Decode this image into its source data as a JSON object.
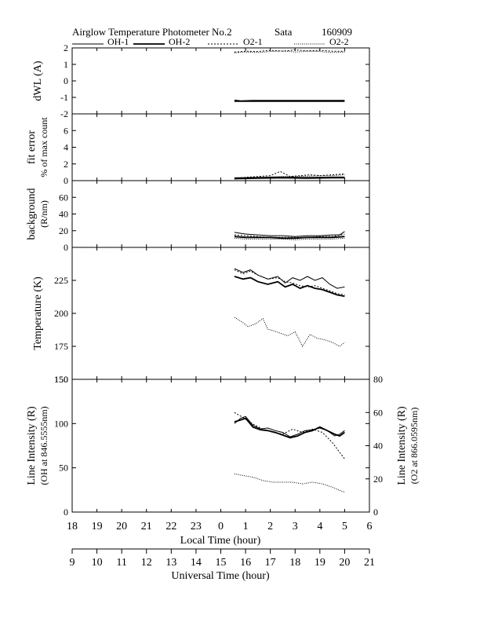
{
  "header": {
    "title": "Airglow Temperature Photometer No.2",
    "station": "Sata",
    "date": "160909"
  },
  "legend": [
    {
      "name": "OH-1",
      "dash": "none",
      "width": 1
    },
    {
      "name": "OH-2",
      "dash": "none",
      "width": 1.8
    },
    {
      "name": "O2-1",
      "dash": "2,2",
      "width": 1
    },
    {
      "name": "O2-2",
      "dash": "1,1.5",
      "width": 1
    }
  ],
  "x_axes": {
    "local": {
      "label": "Local Time (hour)",
      "ticks": [
        "18",
        "19",
        "20",
        "21",
        "22",
        "23",
        "0",
        "1",
        "2",
        "3",
        "4",
        "5",
        "6"
      ]
    },
    "universal": {
      "label": "Universal Time (hour)",
      "ticks": [
        "9",
        "10",
        "11",
        "12",
        "13",
        "14",
        "15",
        "16",
        "17",
        "18",
        "19",
        "20",
        "21"
      ]
    }
  },
  "chart_data": [
    {
      "type": "line",
      "panel": "dwl",
      "ylabel": [
        "dWL (A)"
      ],
      "ylim": [
        -2,
        2
      ],
      "yticks": [
        "2",
        "1",
        "0",
        "-1",
        "-2"
      ],
      "x_unit": "hours since 18 LT",
      "series": [
        {
          "name": "OH-1",
          "x": [
            6.55,
            7.3,
            8,
            9,
            10,
            11
          ],
          "y": [
            -1.25,
            -1.25,
            -1.25,
            -1.25,
            -1.25,
            -1.25
          ]
        },
        {
          "name": "OH-2",
          "x": [
            6.55,
            6.8,
            7.3,
            8,
            9,
            10,
            11
          ],
          "y": [
            -1.18,
            -1.22,
            -1.2,
            -1.2,
            -1.2,
            -1.2,
            -1.2
          ]
        },
        {
          "name": "O2-1",
          "x": [
            6.55,
            7.0,
            7.5,
            8.0,
            8.5,
            9.0,
            9.5,
            10.0,
            10.5,
            11.0
          ],
          "y": [
            1.75,
            1.8,
            1.78,
            1.85,
            1.8,
            1.88,
            1.82,
            1.85,
            1.8,
            1.8
          ]
        },
        {
          "name": "O2-2",
          "x": [
            6.55,
            7.0,
            7.5,
            8.0,
            8.5,
            9.0,
            9.5,
            10.0,
            10.5,
            11.0
          ],
          "y": [
            1.7,
            1.75,
            1.72,
            1.78,
            1.82,
            1.75,
            1.8,
            1.78,
            1.72,
            1.75
          ]
        }
      ]
    },
    {
      "type": "line",
      "panel": "fit-error",
      "ylabel": [
        "fit error",
        "% of max count"
      ],
      "ylim": [
        0,
        8
      ],
      "yticks": [
        "6",
        "4",
        "2",
        "0"
      ],
      "x_unit": "hours since 18 LT",
      "series": [
        {
          "name": "OH-1",
          "x": [
            6.55,
            7.5,
            8.5,
            9.5,
            10.5,
            11
          ],
          "y": [
            0.2,
            0.25,
            0.3,
            0.25,
            0.3,
            0.3
          ]
        },
        {
          "name": "OH-2",
          "x": [
            6.55,
            7.5,
            8.5,
            9.5,
            10.5,
            11
          ],
          "y": [
            0.3,
            0.35,
            0.4,
            0.35,
            0.4,
            0.4
          ]
        },
        {
          "name": "O2-1",
          "x": [
            6.55,
            7.0,
            7.5,
            8.0,
            8.4,
            8.8,
            9.2,
            9.6,
            10.0,
            10.5,
            11.0
          ],
          "y": [
            0.3,
            0.4,
            0.5,
            0.6,
            1.1,
            0.5,
            0.6,
            0.7,
            0.6,
            0.7,
            0.8
          ]
        },
        {
          "name": "O2-2",
          "x": [
            6.55,
            7.0,
            7.5,
            8.0,
            8.5,
            9.0,
            9.5,
            10.0,
            10.5,
            11.0
          ],
          "y": [
            0.2,
            0.3,
            0.4,
            0.45,
            0.5,
            0.5,
            0.55,
            0.6,
            0.6,
            0.7
          ]
        }
      ]
    },
    {
      "type": "line",
      "panel": "background",
      "ylabel": [
        "background",
        "(R/nm)"
      ],
      "ylim": [
        0,
        80
      ],
      "yticks": [
        "60",
        "40",
        "20",
        "0"
      ],
      "x_unit": "hours since 18 LT",
      "series": [
        {
          "name": "OH-1",
          "x": [
            6.55,
            7.0,
            7.5,
            8.0,
            8.5,
            9.0,
            9.5,
            10.0,
            10.5,
            10.8,
            11.0
          ],
          "y": [
            18,
            16,
            15,
            14,
            14,
            13,
            14,
            14,
            15,
            15,
            19
          ]
        },
        {
          "name": "OH-2",
          "x": [
            6.55,
            7.0,
            7.5,
            8.0,
            8.5,
            9.0,
            9.5,
            10.0,
            10.5,
            11.0
          ],
          "y": [
            13,
            12,
            12,
            12,
            11,
            11,
            12,
            12,
            12,
            13
          ]
        },
        {
          "name": "O2-1",
          "x": [
            6.55,
            7.0,
            7.5,
            8.0,
            8.5,
            9.0,
            9.5,
            10.0,
            10.5,
            11.0
          ],
          "y": [
            15,
            14,
            13,
            12,
            12,
            12,
            12,
            13,
            13,
            16
          ]
        },
        {
          "name": "O2-2",
          "x": [
            6.55,
            7.0,
            7.5,
            8.0,
            8.5,
            9.0,
            9.5,
            10.0,
            10.5,
            11.0
          ],
          "y": [
            11,
            10,
            10,
            10,
            10,
            9,
            10,
            10,
            10,
            11
          ]
        }
      ]
    },
    {
      "type": "line",
      "panel": "temperature",
      "ylabel": [
        "Temperature (K)"
      ],
      "ylim": [
        150,
        250
      ],
      "yticks": [
        "225",
        "200",
        "175",
        "150"
      ],
      "x_unit": "hours since 18 LT",
      "series": [
        {
          "name": "OH-1",
          "x": [
            6.55,
            6.9,
            7.2,
            7.5,
            7.9,
            8.3,
            8.6,
            8.9,
            9.2,
            9.5,
            9.8,
            10.1,
            10.4,
            10.7,
            11.0
          ],
          "y": [
            234,
            231,
            233,
            229,
            226,
            228,
            223,
            227,
            225,
            228,
            225,
            227,
            222,
            219,
            220
          ]
        },
        {
          "name": "OH-2",
          "x": [
            6.55,
            6.9,
            7.2,
            7.5,
            7.9,
            8.3,
            8.6,
            8.9,
            9.2,
            9.5,
            9.8,
            10.1,
            10.4,
            10.7,
            11.0
          ],
          "y": [
            228,
            226,
            227,
            224,
            222,
            224,
            220,
            222,
            219,
            221,
            219,
            218,
            216,
            214,
            213
          ]
        },
        {
          "name": "O2-1",
          "x": [
            6.55,
            6.9,
            7.2,
            7.5,
            7.9,
            8.3,
            8.6,
            8.9,
            9.2,
            9.5,
            9.8,
            10.1,
            10.4,
            10.7,
            11.0
          ],
          "y": [
            233,
            230,
            232,
            229,
            226,
            227,
            224,
            223,
            221,
            220,
            221,
            219,
            217,
            215,
            214
          ]
        },
        {
          "name": "O2-2",
          "x": [
            6.55,
            6.9,
            7.1,
            7.4,
            7.7,
            7.9,
            8.1,
            8.4,
            8.7,
            9.0,
            9.3,
            9.6,
            9.9,
            10.2,
            10.5,
            10.8,
            11.0
          ],
          "y": [
            197,
            193,
            190,
            192,
            196,
            188,
            187,
            185,
            183,
            186,
            175,
            184,
            181,
            180,
            178,
            175,
            178
          ]
        }
      ]
    },
    {
      "type": "line",
      "panel": "line-intensity",
      "ylabel": [
        "Line Intensity (R)",
        "(OH at 846.5555nm)"
      ],
      "ylabel_right": [
        "Line Intensity (R)",
        "(O2 at 866.0595nm)"
      ],
      "ylim": [
        0,
        150
      ],
      "ylim_right": [
        0,
        80
      ],
      "yticks": [
        "150",
        "100",
        "50",
        "0"
      ],
      "yticks_right": [
        "80",
        "60",
        "40",
        "20",
        "0"
      ],
      "x_unit": "hours since 18 LT",
      "series": [
        {
          "name": "OH-1",
          "x": [
            6.55,
            6.8,
            7.0,
            7.3,
            7.6,
            7.9,
            8.2,
            8.5,
            8.8,
            9.1,
            9.4,
            9.7,
            10.0,
            10.3,
            10.6,
            10.8,
            11.0
          ],
          "y": [
            100,
            106,
            108,
            98,
            94,
            95,
            92,
            90,
            85,
            88,
            92,
            93,
            95,
            92,
            86,
            88,
            92
          ]
        },
        {
          "name": "OH-2",
          "x": [
            6.55,
            6.8,
            7.0,
            7.3,
            7.6,
            7.9,
            8.2,
            8.5,
            8.8,
            9.1,
            9.4,
            9.7,
            10.0,
            10.3,
            10.6,
            10.8,
            11.0
          ],
          "y": [
            102,
            104,
            106,
            96,
            93,
            92,
            90,
            87,
            84,
            86,
            90,
            92,
            96,
            92,
            88,
            86,
            90
          ]
        },
        {
          "name": "O2-1",
          "x": [
            6.55,
            6.9,
            7.3,
            7.7,
            8.1,
            8.5,
            8.9,
            9.3,
            9.7,
            10.1,
            10.5,
            10.8,
            11.0
          ],
          "y": [
            60,
            57,
            53,
            50,
            48,
            47,
            50,
            48,
            50,
            48,
            42,
            36,
            32
          ]
        },
        {
          "name": "O2-2",
          "x": [
            6.55,
            6.9,
            7.3,
            7.7,
            8.1,
            8.5,
            8.9,
            9.3,
            9.7,
            10.1,
            10.5,
            10.8,
            11.0
          ],
          "y": [
            23,
            22,
            21,
            19,
            18,
            18,
            18,
            17,
            18,
            17,
            15,
            13,
            12
          ]
        }
      ]
    }
  ]
}
